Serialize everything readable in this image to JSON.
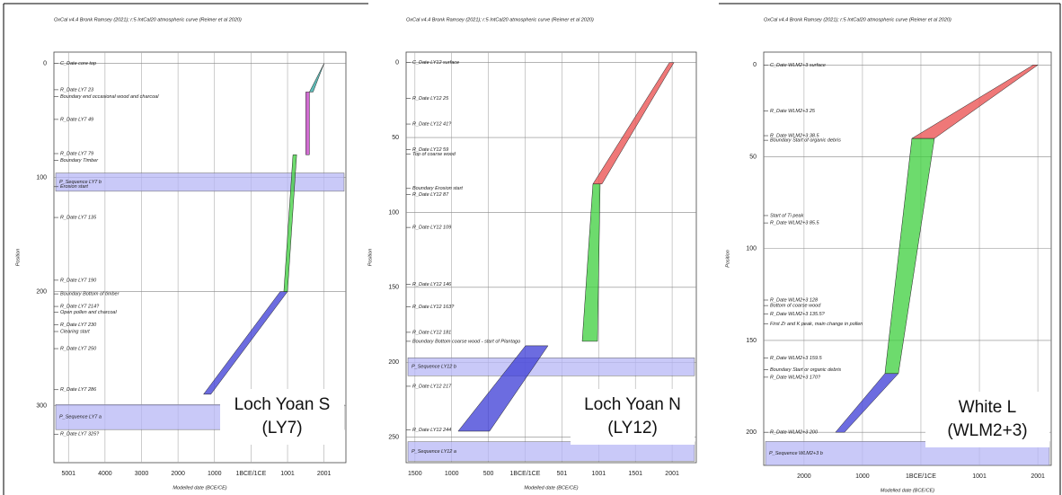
{
  "chart_data": [
    {
      "type": "age-depth",
      "header": "OxCal v4.4 Bronk Ramsey (2021); r:5 IntCal20 atmospheric curve (Reimer et al 2020)",
      "xlabel": "Modelled date (BCE/CE)",
      "ylabel": "Position",
      "label_lines": [
        "Loch Yoan S",
        "(LY7)"
      ],
      "xlim": [
        -5400,
        2600
      ],
      "ylim": [
        -10,
        350
      ],
      "grid": true,
      "xticks": [
        {
          "value": -5000,
          "label": "5001"
        },
        {
          "value": -4000,
          "label": "4000"
        },
        {
          "value": -3000,
          "label": "3000"
        },
        {
          "value": -2000,
          "label": "2000"
        },
        {
          "value": -1000,
          "label": "1000"
        },
        {
          "value": 0,
          "label": "1BCE/1CE"
        },
        1001,
        2001
      ],
      "yticks": [
        0,
        100,
        200,
        300
      ],
      "bands": [
        {
          "label": "P_Sequence LY7 b",
          "y": [
            96,
            112
          ]
        },
        {
          "label": "P_Sequence LY7 a",
          "y": [
            299,
            321
          ]
        }
      ],
      "segments": [
        {
          "color": "#3b3bd6",
          "y": [
            290,
            200
          ],
          "x_lo": [
            -1300,
            800
          ],
          "x_hi": [
            -1100,
            1000
          ]
        },
        {
          "color": "#3ccf3c",
          "y": [
            200,
            80
          ],
          "x_lo": [
            900,
            1150
          ],
          "x_hi": [
            1000,
            1250
          ]
        },
        {
          "color": "#c03cc0",
          "y": [
            80,
            25
          ],
          "x_lo": [
            1500,
            1500
          ],
          "x_hi": [
            1600,
            1600
          ]
        },
        {
          "color": "#2aa6a0",
          "y": [
            25,
            0
          ],
          "x_lo": [
            1600,
            2000
          ],
          "x_hi": [
            1700,
            2001
          ]
        }
      ],
      "annotations": [
        {
          "text": "C_Date core top",
          "depth": 0
        },
        {
          "text": "R_Date LY7 23",
          "depth": 23
        },
        {
          "text": "Boundary end occasional wood and charcoal",
          "depth": 29
        },
        {
          "text": "R_Date LY7 49",
          "depth": 49
        },
        {
          "text": "R_Date LY7 79",
          "depth": 79
        },
        {
          "text": "Boundary Timber",
          "depth": 85
        },
        {
          "text": "Erosion start",
          "depth": 108
        },
        {
          "text": "R_Date LY7 135",
          "depth": 135
        },
        {
          "text": "R_Date LY7 190",
          "depth": 190
        },
        {
          "text": "Boundary Bottom of timber",
          "depth": 202
        },
        {
          "text": "R_Date LY7 214?",
          "depth": 213
        },
        {
          "text": "Open pollen and charcoal",
          "depth": 218
        },
        {
          "text": "R_Date LY7 230",
          "depth": 229
        },
        {
          "text": "Clearing start",
          "depth": 235
        },
        {
          "text": "R_Date LY7 250",
          "depth": 250
        },
        {
          "text": "R_Date LY7 286",
          "depth": 286
        },
        {
          "text": "R_Date LY7 325?",
          "depth": 325
        }
      ]
    },
    {
      "type": "age-depth",
      "header": "OxCal v4.4 Bronk Ramsey (2021); r:5 IntCal20 atmospheric curve (Reimer et al 2020)",
      "xlabel": "Modelled date (BCE/CE)",
      "ylabel": "Position",
      "label_lines": [
        "Loch Yoan N",
        "(LY12)"
      ],
      "xlim": [
        -1620,
        2330
      ],
      "ylim": [
        -7,
        267
      ],
      "grid": true,
      "xticks": [
        {
          "value": -1500,
          "label": "1500"
        },
        {
          "value": -1000,
          "label": "1000"
        },
        {
          "value": -500,
          "label": "500"
        },
        {
          "value": 0,
          "label": "1BCE/1CE"
        },
        501,
        1001,
        1501,
        2001
      ],
      "yticks": [
        0,
        50,
        100,
        150,
        200,
        250
      ],
      "bands": [
        {
          "label": "P_Sequence LY12 b",
          "y": [
            197,
            209
          ]
        },
        {
          "label": "P_Sequence LY12 a",
          "y": [
            253,
            266
          ]
        }
      ],
      "segments": [
        {
          "color": "#3b3bd6",
          "y": [
            246,
            189
          ],
          "x_lo": [
            -912,
            5
          ],
          "x_hi": [
            -484,
            311
          ]
        },
        {
          "color": "#3ccf3c",
          "y": [
            186,
            81
          ],
          "x_lo": [
            777,
            923
          ],
          "x_hi": [
            985,
            1021
          ]
        },
        {
          "color": "#e94b4b",
          "y": [
            81,
            0
          ],
          "x_lo": [
            923,
            1964
          ],
          "x_hi": [
            1046,
            2025
          ]
        }
      ],
      "annotations": [
        {
          "text": "C_Date LY12 surface",
          "depth": 0
        },
        {
          "text": "R_Date LY12 25",
          "depth": 24
        },
        {
          "text": "R_Date LY12 41?",
          "depth": 41
        },
        {
          "text": "R_Date LY12 59",
          "depth": 58
        },
        {
          "text": "Top of coarse wood",
          "depth": 61
        },
        {
          "text": "Boundary Erosion start",
          "depth": 84
        },
        {
          "text": "R_Date LY12 87",
          "depth": 88
        },
        {
          "text": "R_Date LY12 109",
          "depth": 110
        },
        {
          "text": "R_Date LY12 146",
          "depth": 148
        },
        {
          "text": "R_Date LY12 163?",
          "depth": 163
        },
        {
          "text": "R_Date LY12 181",
          "depth": 180
        },
        {
          "text": "Boundary Bottom coarse wood - start of Plantago",
          "depth": 186
        },
        {
          "text": "R_Date LY12 217",
          "depth": 216
        },
        {
          "text": "R_Date LY12 244",
          "depth": 245
        }
      ]
    },
    {
      "type": "age-depth",
      "header": "OxCal v4.4 Bronk Ramsey (2021); r:5 IntCal20 atmospheric curve (Reimer et al 2020)",
      "xlabel": "Modelled date (BCE/CE)",
      "ylabel": "Position",
      "label_lines": [
        "White L",
        "(WLM2+3)"
      ],
      "xlim": [
        -2690,
        2230
      ],
      "ylim": [
        -7,
        218
      ],
      "grid": true,
      "xticks": [
        {
          "value": -2000,
          "label": "2000"
        },
        {
          "value": -1000,
          "label": "1000"
        },
        {
          "value": 0,
          "label": "1BCE/1CE"
        },
        1001,
        2001
      ],
      "yticks": [
        0,
        50,
        100,
        150,
        200
      ],
      "bands": [
        {
          "label": "P_Sequence WLM2+3 b",
          "y": [
            205,
            218
          ]
        }
      ],
      "segments": [
        {
          "color": "#3b3bd6",
          "y": [
            200,
            168
          ],
          "x_lo": [
            -1462,
            -615
          ],
          "x_hi": [
            -1308,
            -385
          ]
        },
        {
          "color": "#3ccf3c",
          "y": [
            168,
            40
          ],
          "x_lo": [
            -615,
            -154
          ],
          "x_hi": [
            -385,
            231
          ]
        },
        {
          "color": "#e94b4b",
          "y": [
            40,
            0
          ],
          "x_lo": [
            -154,
            1923
          ],
          "x_hi": [
            231,
            2001
          ]
        }
      ],
      "annotations": [
        {
          "text": "C_Date WLM2+3 surface",
          "depth": 0
        },
        {
          "text": "R_Date WLM2+3 25",
          "depth": 25
        },
        {
          "text": "R_Date WLM2+3 38.5",
          "depth": 38.5
        },
        {
          "text": "Boundary Start of organic debris",
          "depth": 41
        },
        {
          "text": "Start of Ti peak",
          "depth": 82
        },
        {
          "text": "R_Date WLM2+3 85.5",
          "depth": 86
        },
        {
          "text": "R_Date WLM2+3 128",
          "depth": 128
        },
        {
          "text": "Bottom of coarse wood",
          "depth": 131
        },
        {
          "text": "R_Date WLM2+3 135.5?",
          "depth": 135.5
        },
        {
          "text": "First Zr and K peak, main change in pollen",
          "depth": 141
        },
        {
          "text": "R_Date WLM2+3 159.5",
          "depth": 159.5
        },
        {
          "text": "Boundary Start or organic debris",
          "depth": 166
        },
        {
          "text": "R_Date WLM2+3 170?",
          "depth": 170
        },
        {
          "text": "R_Date WLM2+3 200",
          "depth": 200
        }
      ]
    }
  ]
}
